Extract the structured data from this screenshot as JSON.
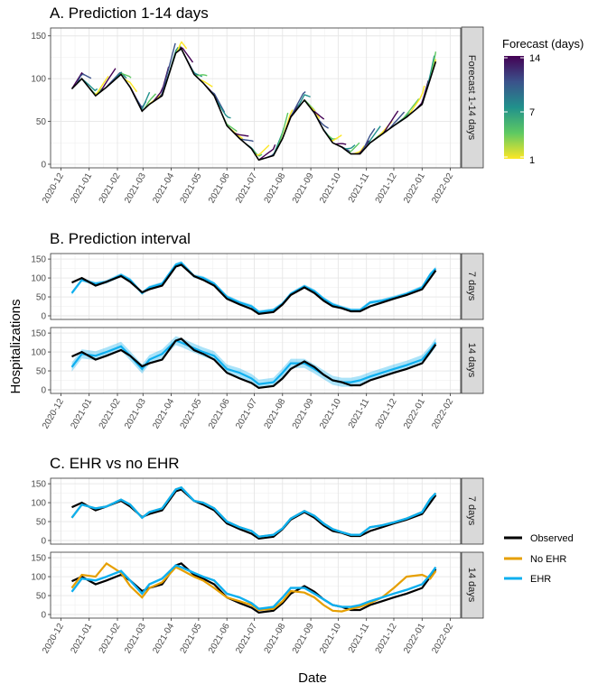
{
  "panels": {
    "a_title": "A. Prediction 1-14 days",
    "b_title": "B. Prediction interval",
    "c_title": "C. EHR vs no EHR",
    "a_strip": "Forecast 1-14 days",
    "b_strip_top": "7 days",
    "b_strip_bottom": "14 days",
    "c_strip_top": "7 days",
    "c_strip_bottom": "14 days"
  },
  "axes": {
    "ylabel": "Hospitalizations",
    "xlabel": "Date",
    "x_ticks": [
      "2020-12",
      "2021-01",
      "2021-02",
      "2021-03",
      "2021-04",
      "2021-05",
      "2021-06",
      "2021-07",
      "2021-08",
      "2021-09",
      "2021-10",
      "2021-11",
      "2021-12",
      "2022-01",
      "2022-02"
    ],
    "y_ticks_a": [
      "0",
      "50",
      "100",
      "150"
    ],
    "y_ticks_b": [
      "0",
      "50",
      "100",
      "150"
    ]
  },
  "legend_forecast": {
    "title": "Forecast (days)",
    "labels": [
      "14",
      "7",
      "1"
    ],
    "colors": [
      "#440154",
      "#3b528b",
      "#21918c",
      "#5ec962",
      "#fde725"
    ]
  },
  "legend_series": {
    "items": [
      {
        "label": "Observed",
        "color": "#000000"
      },
      {
        "label": "No EHR",
        "color": "#E69F00"
      },
      {
        "label": "EHR",
        "color": "#0EAFEF"
      }
    ]
  },
  "chart_data": {
    "type": "line",
    "x_unit": "date",
    "x_range": [
      "2020-12-01",
      "2022-02-01"
    ],
    "ylim": [
      0,
      155
    ],
    "observed": {
      "x": [
        "2020-12-13",
        "2020-12-24",
        "2021-01-08",
        "2021-01-20",
        "2021-02-05",
        "2021-02-15",
        "2021-02-28",
        "2021-03-08",
        "2021-03-22",
        "2021-04-06",
        "2021-04-12",
        "2021-04-26",
        "2021-05-06",
        "2021-05-18",
        "2021-06-01",
        "2021-06-15",
        "2021-06-28",
        "2021-07-06",
        "2021-07-22",
        "2021-08-01",
        "2021-08-10",
        "2021-08-25",
        "2021-09-05",
        "2021-09-15",
        "2021-09-25",
        "2021-10-05",
        "2021-10-15",
        "2021-10-25",
        "2021-11-05",
        "2021-11-18",
        "2021-12-01",
        "2021-12-15",
        "2022-01-01",
        "2022-01-10",
        "2022-01-16"
      ],
      "y": [
        88,
        100,
        80,
        90,
        105,
        90,
        62,
        70,
        80,
        130,
        135,
        105,
        95,
        80,
        45,
        30,
        18,
        5,
        10,
        30,
        55,
        75,
        60,
        40,
        25,
        20,
        12,
        12,
        25,
        35,
        45,
        55,
        70,
        100,
        120
      ]
    },
    "ehr_7day": {
      "x": [
        "2020-12-13",
        "2020-12-24",
        "2021-01-08",
        "2021-01-20",
        "2021-02-05",
        "2021-02-15",
        "2021-02-28",
        "2021-03-08",
        "2021-03-22",
        "2021-04-06",
        "2021-04-12",
        "2021-04-26",
        "2021-05-06",
        "2021-05-18",
        "2021-06-01",
        "2021-06-15",
        "2021-06-28",
        "2021-07-06",
        "2021-07-22",
        "2021-08-01",
        "2021-08-10",
        "2021-08-25",
        "2021-09-05",
        "2021-09-15",
        "2021-09-25",
        "2021-10-05",
        "2021-10-15",
        "2021-10-25",
        "2021-11-05",
        "2021-11-18",
        "2021-12-01",
        "2021-12-15",
        "2022-01-01",
        "2022-01-10",
        "2022-01-16"
      ],
      "y": [
        60,
        95,
        85,
        90,
        108,
        95,
        60,
        75,
        85,
        135,
        140,
        105,
        100,
        85,
        50,
        35,
        25,
        10,
        15,
        32,
        58,
        78,
        65,
        45,
        30,
        22,
        15,
        15,
        35,
        40,
        48,
        58,
        75,
        110,
        125
      ]
    },
    "noehr_14day": {
      "x": [
        "2020-12-13",
        "2020-12-24",
        "2021-01-08",
        "2021-01-20",
        "2021-02-05",
        "2021-02-15",
        "2021-02-28",
        "2021-03-08",
        "2021-03-22",
        "2021-04-06",
        "2021-04-12",
        "2021-04-26",
        "2021-05-06",
        "2021-05-18",
        "2021-06-01",
        "2021-06-15",
        "2021-06-28",
        "2021-07-06",
        "2021-07-22",
        "2021-08-01",
        "2021-08-10",
        "2021-08-25",
        "2021-09-05",
        "2021-09-15",
        "2021-09-25",
        "2021-10-05",
        "2021-10-15",
        "2021-10-25",
        "2021-11-05",
        "2021-11-18",
        "2021-12-01",
        "2021-12-15",
        "2022-01-01",
        "2022-01-10",
        "2022-01-16"
      ],
      "y": [
        70,
        105,
        100,
        135,
        110,
        75,
        45,
        70,
        85,
        125,
        118,
        100,
        90,
        70,
        45,
        35,
        25,
        12,
        15,
        35,
        62,
        58,
        45,
        25,
        10,
        8,
        15,
        20,
        30,
        45,
        70,
        100,
        105,
        95,
        115
      ]
    },
    "ehr_14day": {
      "x": [
        "2020-12-13",
        "2020-12-24",
        "2021-01-08",
        "2021-01-20",
        "2021-02-05",
        "2021-02-15",
        "2021-02-28",
        "2021-03-08",
        "2021-03-22",
        "2021-04-06",
        "2021-04-12",
        "2021-04-26",
        "2021-05-06",
        "2021-05-18",
        "2021-06-01",
        "2021-06-15",
        "2021-06-28",
        "2021-07-06",
        "2021-07-22",
        "2021-08-01",
        "2021-08-10",
        "2021-08-25",
        "2021-09-05",
        "2021-09-15",
        "2021-09-25",
        "2021-10-05",
        "2021-10-15",
        "2021-10-25",
        "2021-11-05",
        "2021-11-18",
        "2021-12-01",
        "2021-12-15",
        "2022-01-01",
        "2022-01-10",
        "2022-01-16"
      ],
      "y": [
        60,
        95,
        90,
        100,
        115,
        90,
        55,
        80,
        95,
        130,
        125,
        110,
        100,
        90,
        55,
        45,
        30,
        15,
        20,
        45,
        70,
        70,
        55,
        40,
        25,
        20,
        20,
        25,
        35,
        45,
        55,
        65,
        80,
        105,
        125
      ]
    }
  }
}
